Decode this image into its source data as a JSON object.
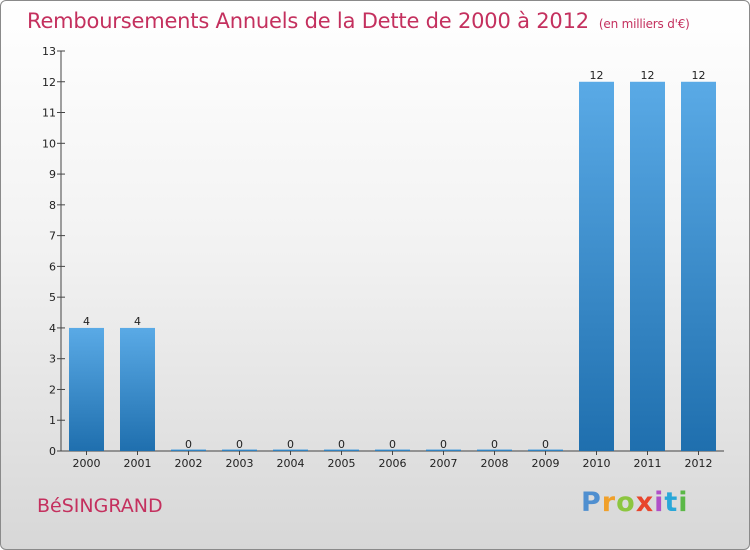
{
  "header": {
    "title": "Remboursements Annuels de la Dette de 2000 à 2012",
    "subtitle": "(en milliers d'€)"
  },
  "commune": "BéSINGRAND",
  "logo": {
    "text": "Proxiti"
  },
  "colors": {
    "title": "#c4305e",
    "bar_top": "#5aaae6",
    "bar_bottom": "#1f6fae"
  },
  "chart_data": {
    "type": "bar",
    "title": "Remboursements Annuels de la Dette de 2000 à 2012",
    "subtitle": "(en milliers d'€)",
    "xlabel": "",
    "ylabel": "",
    "categories": [
      "2000",
      "2001",
      "2002",
      "2003",
      "2004",
      "2005",
      "2006",
      "2007",
      "2008",
      "2009",
      "2010",
      "2011",
      "2012"
    ],
    "values": [
      4,
      4,
      0,
      0,
      0,
      0,
      0,
      0,
      0,
      0,
      12,
      12,
      12
    ],
    "data_labels": [
      "4",
      "4",
      "0",
      "0",
      "0",
      "0",
      "0",
      "0",
      "0",
      "0",
      "12",
      "12",
      "12"
    ],
    "ylim": [
      0,
      13
    ],
    "yticks": [
      "0",
      "1",
      "2",
      "3",
      "4",
      "5",
      "6",
      "7",
      "8",
      "9",
      "10",
      "11",
      "12",
      "13"
    ],
    "grid": false,
    "legend": "none"
  }
}
